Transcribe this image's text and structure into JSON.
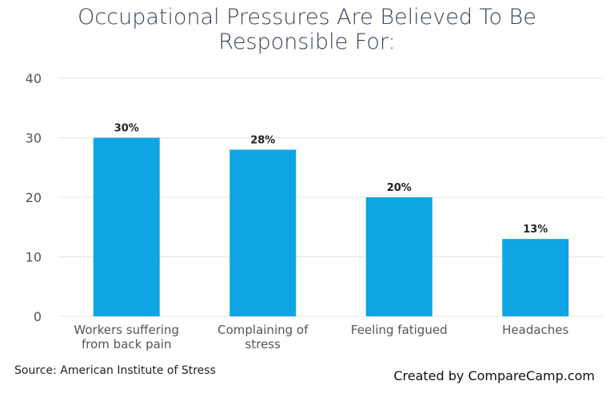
{
  "title_line1": "Occupational Pressures Are Believed To Be",
  "title_line2": "Responsible For:",
  "source": "Source: American Institute of Stress",
  "credit": "Created by CompareCamp.com",
  "colors": {
    "bar": "#0ea5e4",
    "grid": "#e4e4e4",
    "axis_text": "#555555",
    "label_text": "#222222"
  },
  "chart_data": {
    "type": "bar",
    "title": "Occupational Pressures Are Believed To Be Responsible For:",
    "categories": [
      [
        "Workers suffering",
        "from back pain"
      ],
      [
        "Complaining of",
        "stress"
      ],
      [
        "Feeling fatigued"
      ],
      [
        "Headaches"
      ]
    ],
    "values": [
      30,
      28,
      20,
      13
    ],
    "data_labels": [
      "30%",
      "28%",
      "20%",
      "13%"
    ],
    "ylim": [
      0,
      40
    ],
    "yticks": [
      0,
      10,
      20,
      30,
      40
    ],
    "xlabel": "",
    "ylabel": "",
    "grid": true,
    "legend": "none"
  }
}
